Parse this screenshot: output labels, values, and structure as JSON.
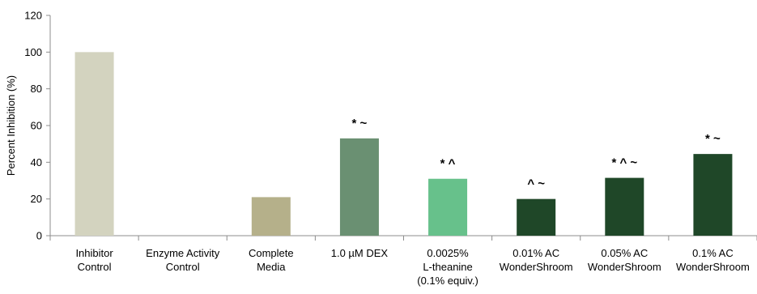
{
  "chart_data": {
    "type": "bar",
    "title": "",
    "xlabel": "",
    "ylabel": "Percent Inhibition (%)",
    "ylim": [
      0,
      120
    ],
    "yticks": [
      0,
      20,
      40,
      60,
      80,
      100,
      120
    ],
    "grid": false,
    "legend": "none",
    "categories": [
      [
        "Inhibitor",
        "Control"
      ],
      [
        "Enzyme Activity",
        "Control"
      ],
      [
        "Complete",
        "Media"
      ],
      [
        "1.0 µM DEX"
      ],
      [
        "0.0025%",
        "L-theanine",
        "(0.1% equiv.)"
      ],
      [
        "0.01% AC",
        "WonderShroom"
      ],
      [
        "0.05% AC",
        "WonderShroom"
      ],
      [
        "0.1% AC",
        "WonderShroom"
      ]
    ],
    "values": [
      100,
      0,
      21,
      53,
      31,
      20,
      31.5,
      44.5
    ],
    "annotations": [
      "",
      "",
      "",
      "* ~",
      "* ^",
      "^ ~",
      "* ^ ~",
      "* ~"
    ],
    "colors": [
      "#d3d3bf",
      "#d3d3bf",
      "#b5b08a",
      "#6a9072",
      "#67c18b",
      "#1f4728",
      "#1f4728",
      "#1f4728"
    ]
  }
}
